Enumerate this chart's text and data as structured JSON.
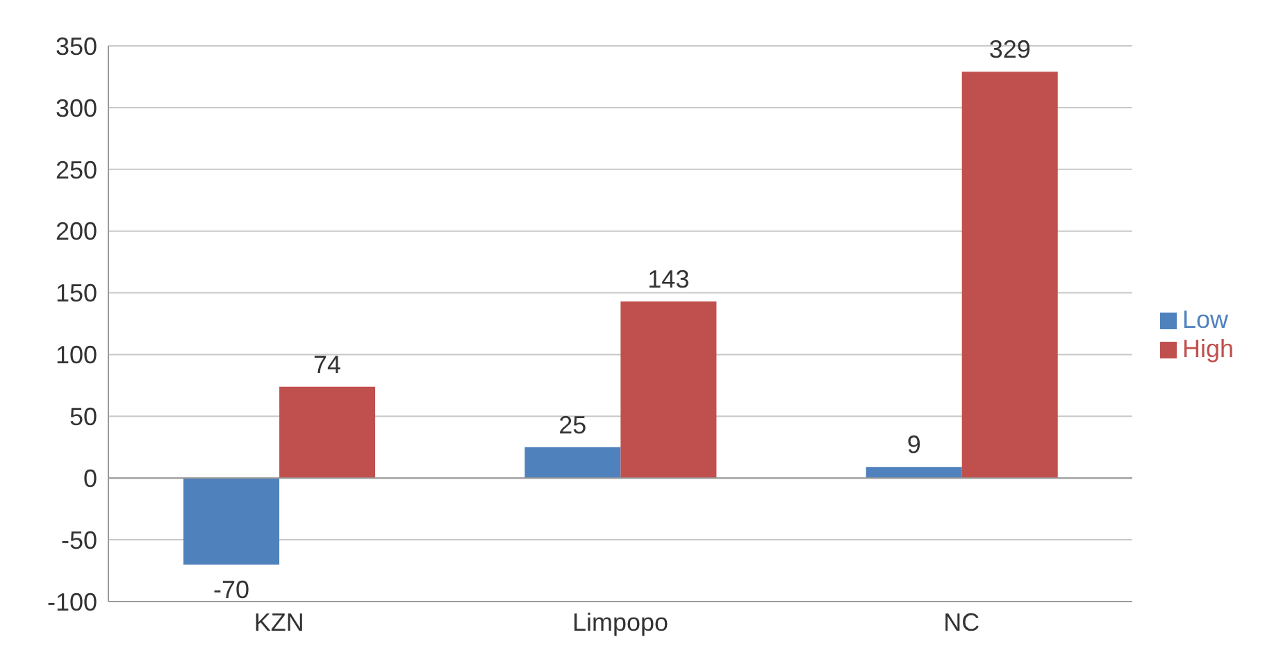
{
  "chart_data": {
    "type": "bar",
    "categories": [
      "KZN",
      "Limpopo",
      "NC"
    ],
    "series": [
      {
        "name": "Low",
        "color": "#4f81bd",
        "values": [
          -70,
          25,
          9
        ]
      },
      {
        "name": "High",
        "color": "#c0504d",
        "values": [
          74,
          143,
          329
        ]
      }
    ],
    "ylim": [
      -100,
      350
    ],
    "yticks": [
      -100,
      -50,
      0,
      50,
      100,
      150,
      200,
      250,
      300,
      350
    ],
    "grid": "y",
    "legend": "right",
    "data_labels": true
  }
}
